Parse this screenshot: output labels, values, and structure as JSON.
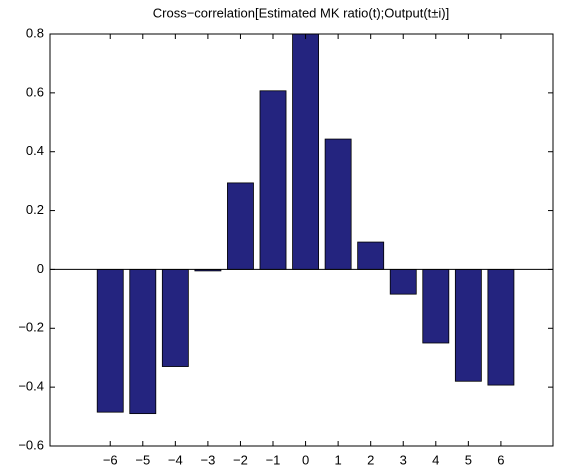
{
  "chart_data": {
    "type": "bar",
    "title": "Cross−correlation[Estimated MK ratio(t);Output(t±i)]",
    "x": [
      -6,
      -5,
      -4,
      -3,
      -2,
      -1,
      0,
      1,
      2,
      3,
      4,
      5,
      6
    ],
    "values": [
      -0.485,
      -0.49,
      -0.33,
      -0.005,
      0.294,
      0.607,
      0.8,
      0.443,
      0.093,
      -0.084,
      -0.25,
      -0.38,
      -0.393
    ],
    "color": "#24247f",
    "xlim": [
      -7.85,
      7.6
    ],
    "xticks": [
      {
        "value": -6,
        "label": "−6"
      },
      {
        "value": -5,
        "label": "−5"
      },
      {
        "value": -4,
        "label": "−4"
      },
      {
        "value": -3,
        "label": "−3"
      },
      {
        "value": -2,
        "label": "−2"
      },
      {
        "value": -1,
        "label": "−1"
      },
      0,
      1,
      2,
      3,
      4,
      5,
      6
    ],
    "ylim": [
      -0.6,
      0.8
    ],
    "yticks": [
      {
        "value": -0.6,
        "label": "−0.6"
      },
      {
        "value": -0.4,
        "label": "−0.4"
      },
      {
        "value": -0.2,
        "label": "−0.2"
      },
      0,
      0.2,
      0.4,
      0.6,
      0.8
    ],
    "grid": false
  }
}
